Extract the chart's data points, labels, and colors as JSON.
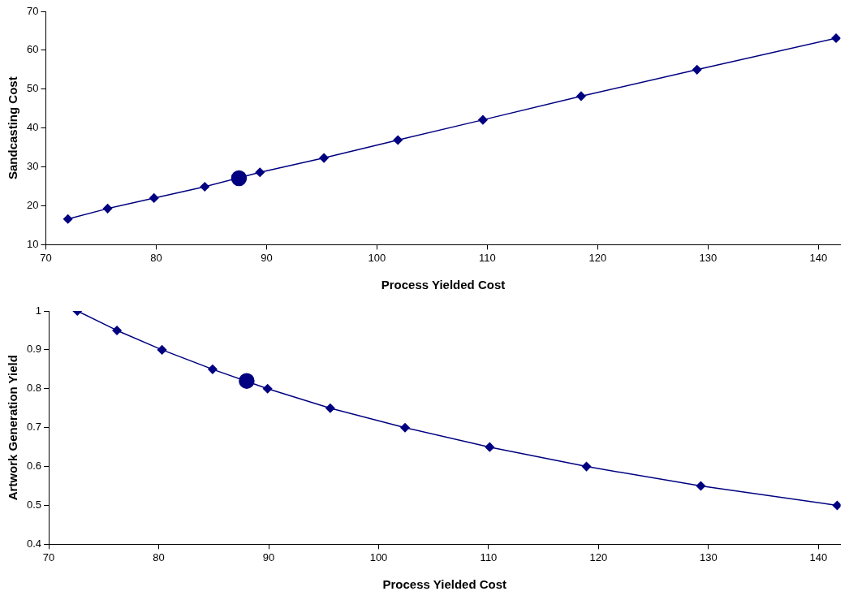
{
  "chart_data": [
    {
      "type": "line",
      "xlabel": "Process Yielded Cost",
      "ylabel": "Sandcasting Cost",
      "xlim": [
        70,
        142
      ],
      "xticks": [
        70,
        80,
        90,
        100,
        110,
        120,
        130,
        140
      ],
      "ylim": [
        10,
        70
      ],
      "yticks": [
        10,
        20,
        30,
        40,
        50,
        60,
        70
      ],
      "grid": false,
      "legend": false,
      "series": [
        {
          "type": "line",
          "color": "#000080",
          "marker": "diamond",
          "x": [
            72.0,
            75.6,
            79.8,
            84.4,
            89.4,
            95.2,
            101.9,
            109.6,
            118.5,
            129.0,
            141.6
          ],
          "values": [
            16.6,
            19.3,
            22.0,
            24.9,
            28.6,
            32.3,
            36.9,
            42.1,
            48.2,
            55.0,
            63.1
          ]
        },
        {
          "type": "scatter",
          "color": "#000080",
          "marker": "circle",
          "x": [
            87.5
          ],
          "values": [
            27.1
          ]
        }
      ]
    },
    {
      "type": "line",
      "xlabel": "Process Yielded Cost",
      "ylabel": "Artwork Generation Yield",
      "xlim": [
        70,
        142
      ],
      "xticks": [
        70,
        80,
        90,
        100,
        110,
        120,
        130,
        140
      ],
      "ylim": [
        0.4,
        1
      ],
      "yticks": [
        0.4,
        0.5,
        0.6,
        0.7,
        0.8,
        0.9,
        1
      ],
      "grid": false,
      "legend": false,
      "series": [
        {
          "type": "line",
          "color": "#000080",
          "marker": "diamond",
          "x": [
            72.6,
            76.2,
            80.3,
            84.9,
            89.9,
            95.6,
            102.4,
            110.1,
            118.9,
            129.3,
            141.7
          ],
          "values": [
            1.0,
            0.95,
            0.9,
            0.85,
            0.8,
            0.75,
            0.7,
            0.65,
            0.6,
            0.55,
            0.5
          ]
        },
        {
          "type": "scatter",
          "color": "#000080",
          "marker": "circle",
          "x": [
            88.0
          ],
          "values": [
            0.82
          ]
        }
      ]
    }
  ]
}
